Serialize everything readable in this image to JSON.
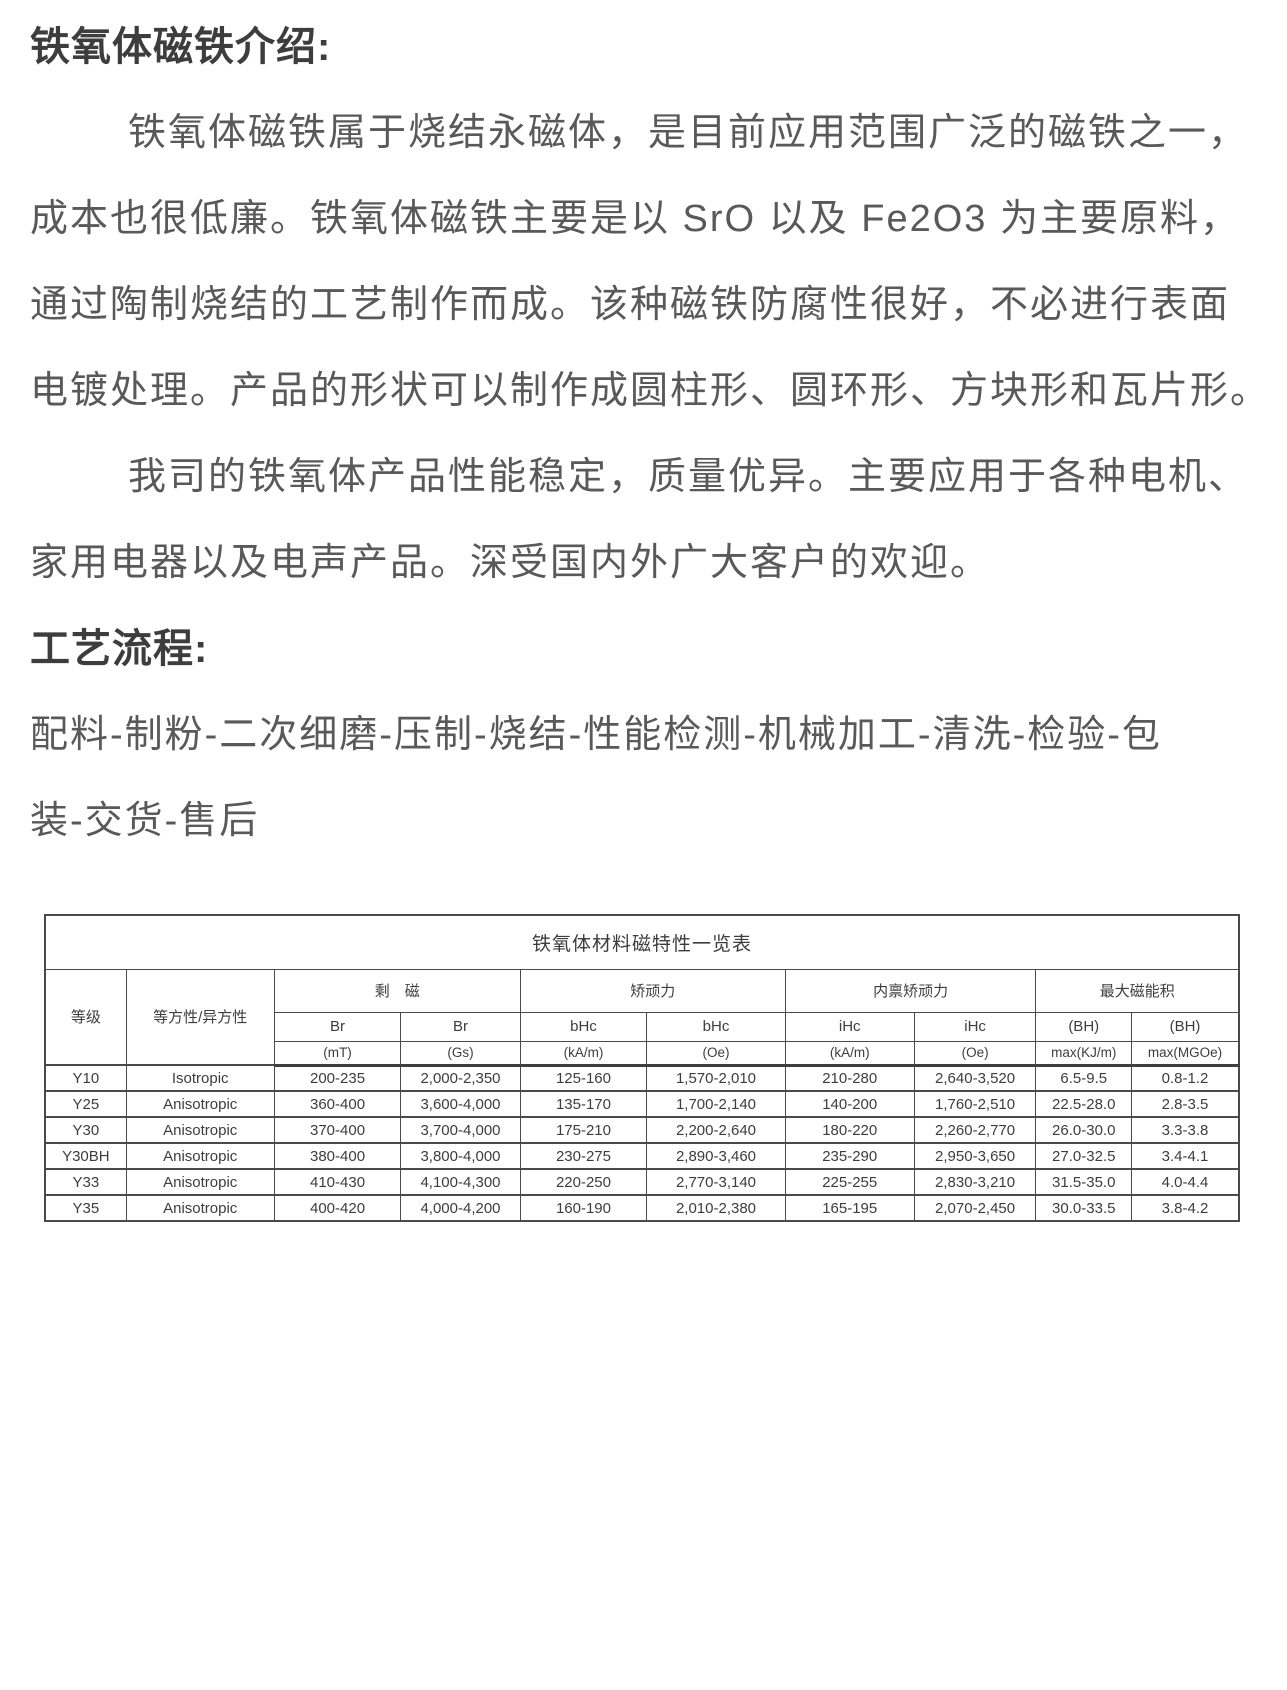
{
  "intro": {
    "heading": "铁氧体磁铁介绍:",
    "paragraph1_lines": [
      "铁氧体磁铁属于烧结永磁体，是目前应用范围广泛的磁铁之一，",
      "成本也很低廉。铁氧体磁铁主要是以 SrO 以及 Fe2O3 为主要原料，",
      "通过陶制烧结的工艺制作而成。该种磁铁防腐性很好，不必进行表面",
      "电镀处理。产品的形状可以制作成圆柱形、圆环形、方块形和瓦片形。"
    ],
    "paragraph2_lines": [
      "我司的铁氧体产品性能稳定，质量优异。主要应用于各种电机、",
      "家用电器以及电声产品。深受国内外广大客户的欢迎。"
    ]
  },
  "process": {
    "heading": "工艺流程:",
    "flow_lines": [
      "配料-制粉-二次细磨-压制-烧结-性能检测-机械加工-清洗-检验-包",
      "装-交货-售后"
    ]
  },
  "table": {
    "title": "铁氧体材料磁特性一览表",
    "header": {
      "grade": "等级",
      "isotropy": "等方性/异方性",
      "groups": [
        "剩　磁",
        "矫顽力",
        "内禀矫顽力",
        "最大磁能积"
      ],
      "symbols": [
        "Br",
        "Br",
        "bHc",
        "bHc",
        "iHc",
        "iHc",
        "(BH)",
        "(BH)"
      ],
      "units": [
        "(mT)",
        "(Gs)",
        "(kA/m)",
        "(Oe)",
        "(kA/m)",
        "(Oe)",
        "max(KJ/m)",
        "max(MGOe)"
      ]
    },
    "rows": [
      {
        "grade": "Y10",
        "isotropy": "Isotropic",
        "values": [
          "200-235",
          "2,000-2,350",
          "125-160",
          "1,570-2,010",
          "210-280",
          "2,640-3,520",
          "6.5-9.5",
          "0.8-1.2"
        ]
      },
      {
        "grade": "Y25",
        "isotropy": "Anisotropic",
        "values": [
          "360-400",
          "3,600-4,000",
          "135-170",
          "1,700-2,140",
          "140-200",
          "1,760-2,510",
          "22.5-28.0",
          "2.8-3.5"
        ]
      },
      {
        "grade": "Y30",
        "isotropy": "Anisotropic",
        "values": [
          "370-400",
          "3,700-4,000",
          "175-210",
          "2,200-2,640",
          "180-220",
          "2,260-2,770",
          "26.0-30.0",
          "3.3-3.8"
        ]
      },
      {
        "grade": "Y30BH",
        "isotropy": "Anisotropic",
        "values": [
          "380-400",
          "3,800-4,000",
          "230-275",
          "2,890-3,460",
          "235-290",
          "2,950-3,650",
          "27.0-32.5",
          "3.4-4.1"
        ]
      },
      {
        "grade": "Y33",
        "isotropy": "Anisotropic",
        "values": [
          "410-430",
          "4,100-4,300",
          "220-250",
          "2,770-3,140",
          "225-255",
          "2,830-3,210",
          "31.5-35.0",
          "4.0-4.4"
        ]
      },
      {
        "grade": "Y35",
        "isotropy": "Anisotropic",
        "values": [
          "400-420",
          "4,000-4,200",
          "160-190",
          "2,010-2,380",
          "165-195",
          "2,070-2,450",
          "30.0-33.5",
          "3.8-4.2"
        ]
      }
    ]
  },
  "colors": {
    "background": "#ffffff",
    "body_text": "#595959",
    "heading_text": "#3d3d3d",
    "table_border": "#4a4a4a"
  }
}
